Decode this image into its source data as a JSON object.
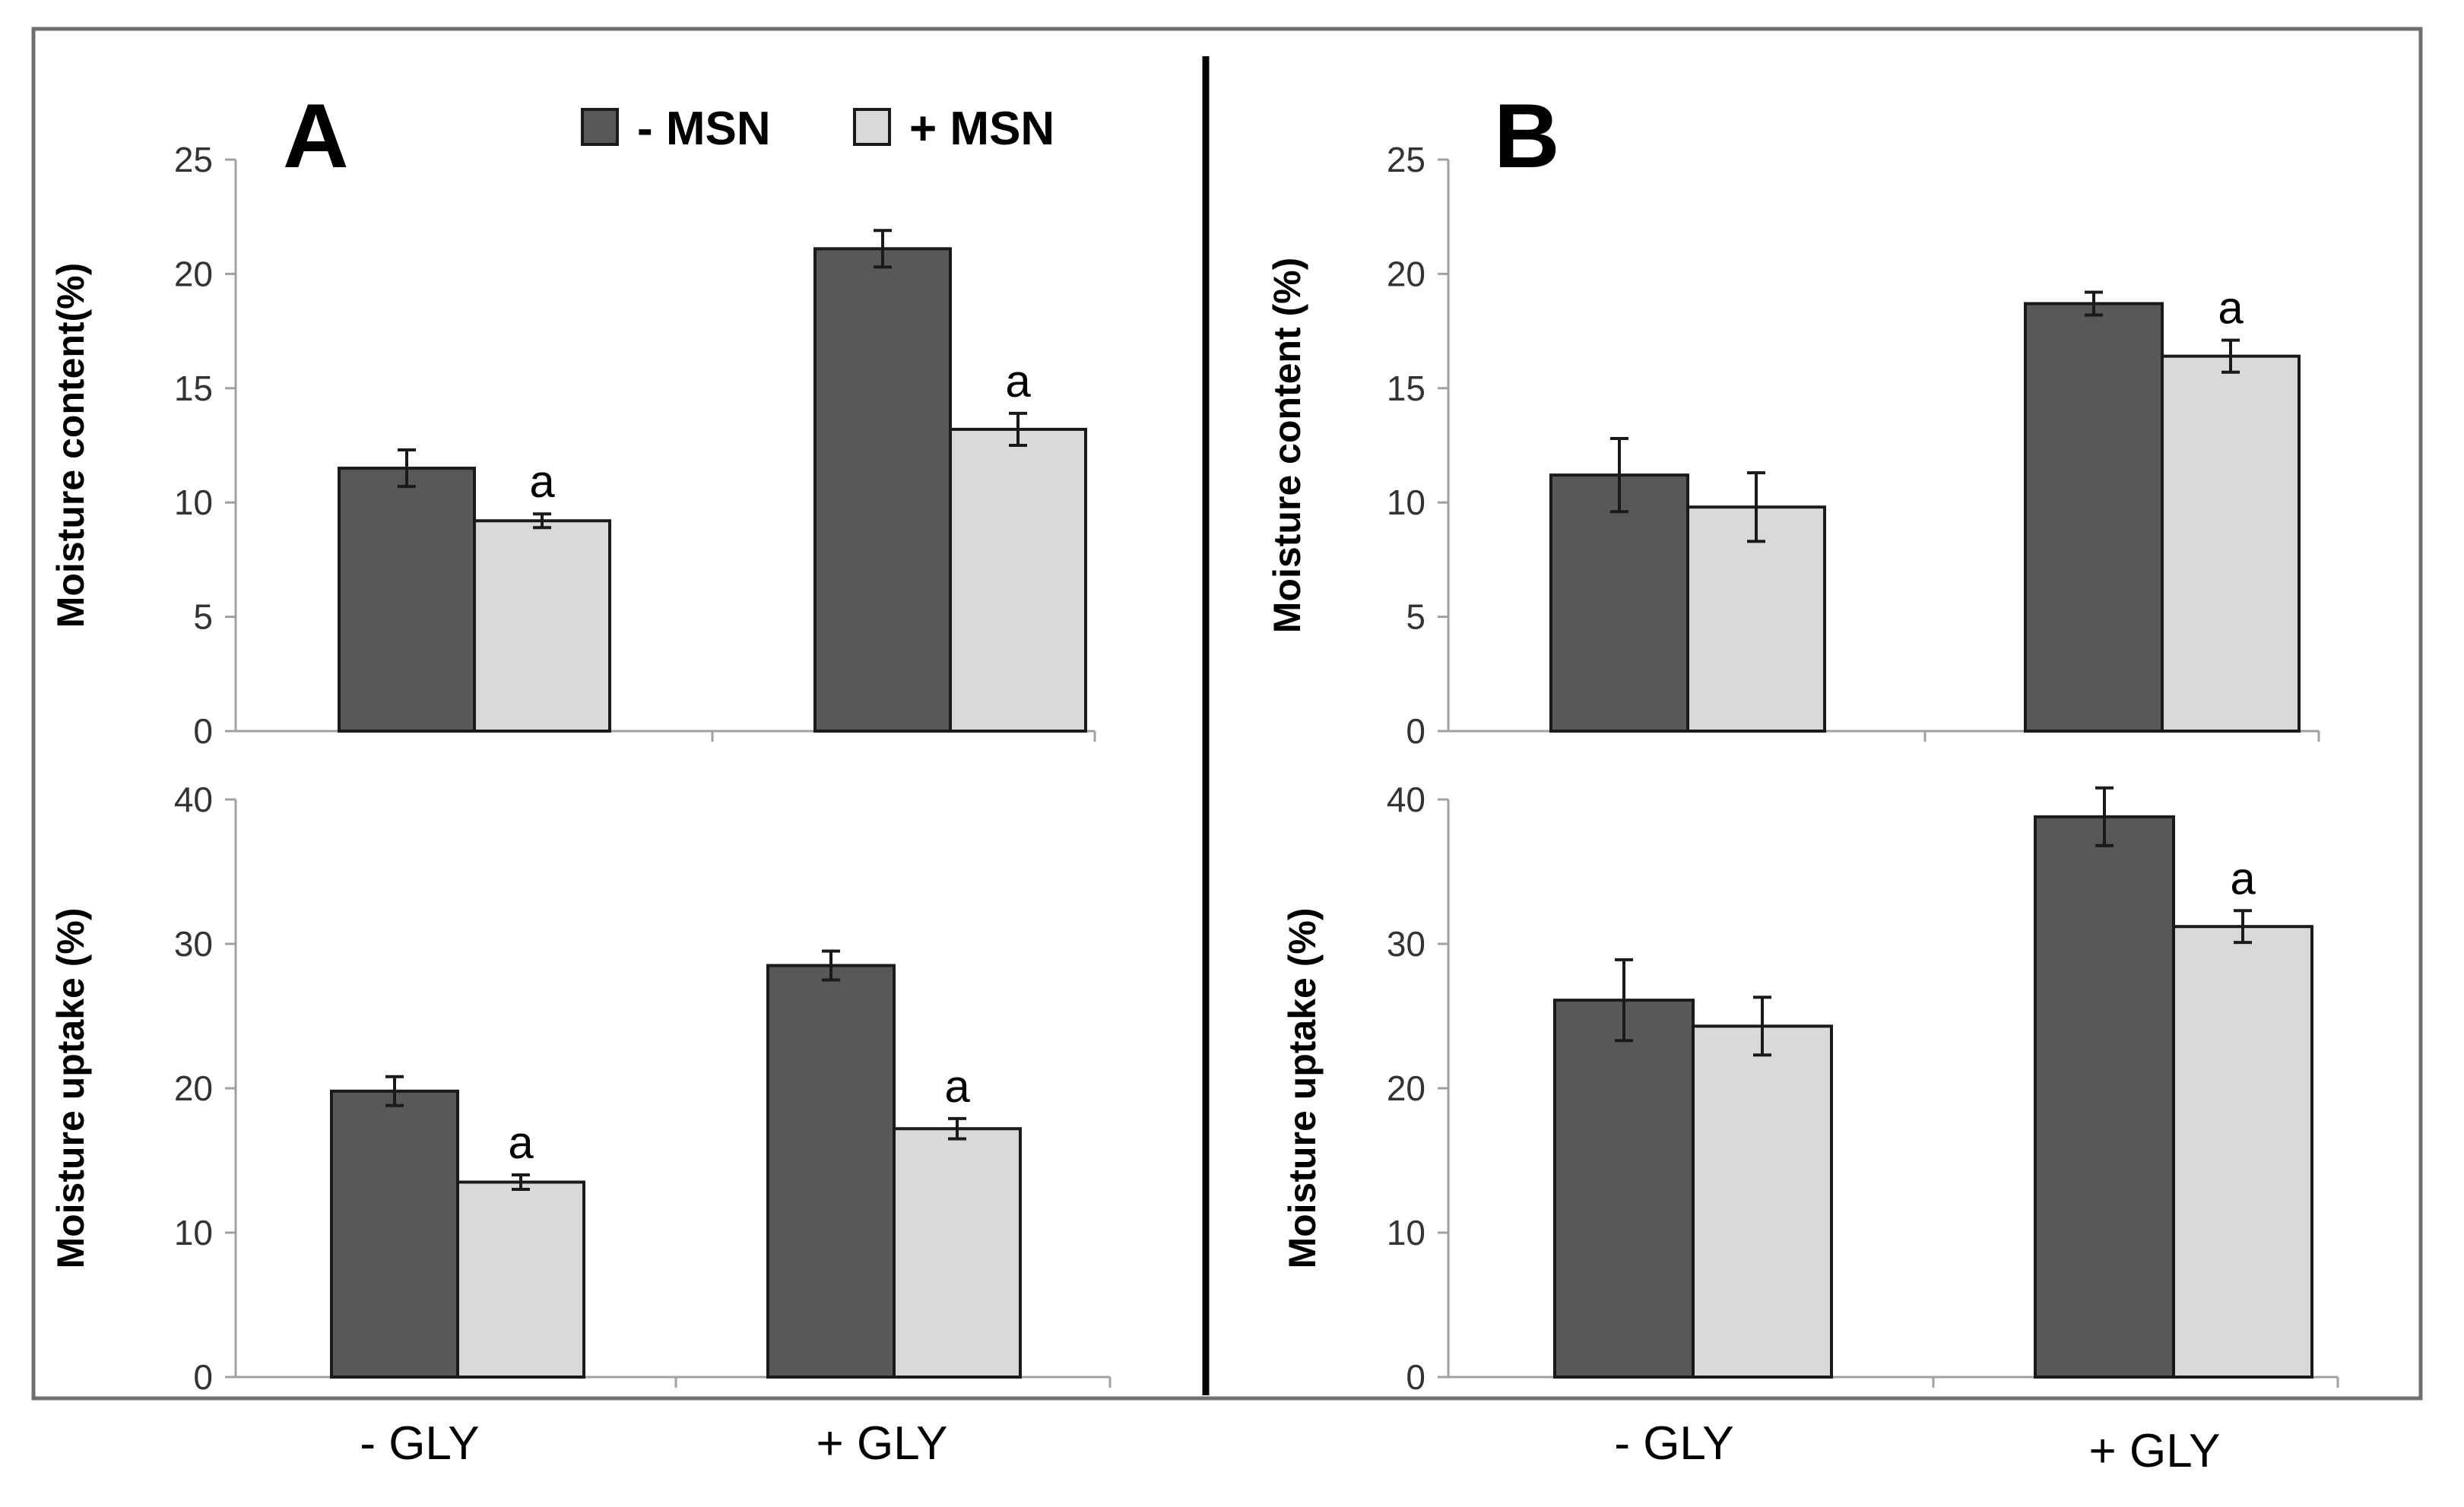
{
  "colors": {
    "minus_msn": "#585858",
    "plus_msn": "#d9d9d9",
    "frame": "#6f6f6f",
    "divider": "#000000"
  },
  "legend": {
    "items": [
      {
        "label": "- MSN",
        "color": "#585858"
      },
      {
        "label": "+ MSN",
        "color": "#d9d9d9"
      }
    ]
  },
  "categories": [
    "- GLY",
    "+ GLY"
  ],
  "chart_data": [
    {
      "type": "bar",
      "panel": "A",
      "position": "top",
      "ylabel": "Moisture content(%)",
      "ylim": [
        0,
        25
      ],
      "yticks": [
        0,
        5,
        10,
        15,
        20,
        25
      ],
      "categories": [
        "- GLY",
        "+ GLY"
      ],
      "series": [
        {
          "name": "- MSN",
          "values": [
            11.5,
            21.1
          ],
          "errors": [
            0.8,
            0.8
          ],
          "labels": [
            "",
            ""
          ]
        },
        {
          "name": "+ MSN",
          "values": [
            9.2,
            13.2
          ],
          "errors": [
            0.3,
            0.7
          ],
          "labels": [
            "a",
            "a"
          ]
        }
      ]
    },
    {
      "type": "bar",
      "panel": "A",
      "position": "bottom",
      "ylabel": "Moisture uptake (%)",
      "ylim": [
        0,
        40
      ],
      "yticks": [
        0,
        10,
        20,
        30,
        40
      ],
      "categories": [
        "- GLY",
        "+ GLY"
      ],
      "series": [
        {
          "name": "- MSN",
          "values": [
            19.8,
            28.5
          ],
          "errors": [
            1.0,
            1.0
          ],
          "labels": [
            "",
            ""
          ]
        },
        {
          "name": "+ MSN",
          "values": [
            13.5,
            17.2
          ],
          "errors": [
            0.5,
            0.7
          ],
          "labels": [
            "a",
            "a"
          ]
        }
      ]
    },
    {
      "type": "bar",
      "panel": "B",
      "position": "top",
      "ylabel": "Moisture content (%)",
      "ylim": [
        0,
        25
      ],
      "yticks": [
        0,
        5,
        10,
        15,
        20,
        25
      ],
      "categories": [
        "- GLY",
        "+ GLY"
      ],
      "series": [
        {
          "name": "- MSN",
          "values": [
            11.2,
            18.7
          ],
          "errors": [
            1.6,
            0.5
          ],
          "labels": [
            "",
            ""
          ]
        },
        {
          "name": "+ MSN",
          "values": [
            9.8,
            16.4
          ],
          "errors": [
            1.5,
            0.7
          ],
          "labels": [
            "",
            "a"
          ]
        }
      ]
    },
    {
      "type": "bar",
      "panel": "B",
      "position": "bottom",
      "ylabel": "Moisture uptake (%)",
      "ylim": [
        0,
        40
      ],
      "yticks": [
        0,
        10,
        20,
        30,
        40
      ],
      "categories": [
        "- GLY",
        "+ GLY"
      ],
      "series": [
        {
          "name": "- MSN",
          "values": [
            26.1,
            38.8
          ],
          "errors": [
            2.8,
            2.0
          ],
          "labels": [
            "",
            ""
          ]
        },
        {
          "name": "+ MSN",
          "values": [
            24.3,
            31.2
          ],
          "errors": [
            2.0,
            1.1
          ],
          "labels": [
            "",
            "a"
          ]
        }
      ]
    }
  ]
}
